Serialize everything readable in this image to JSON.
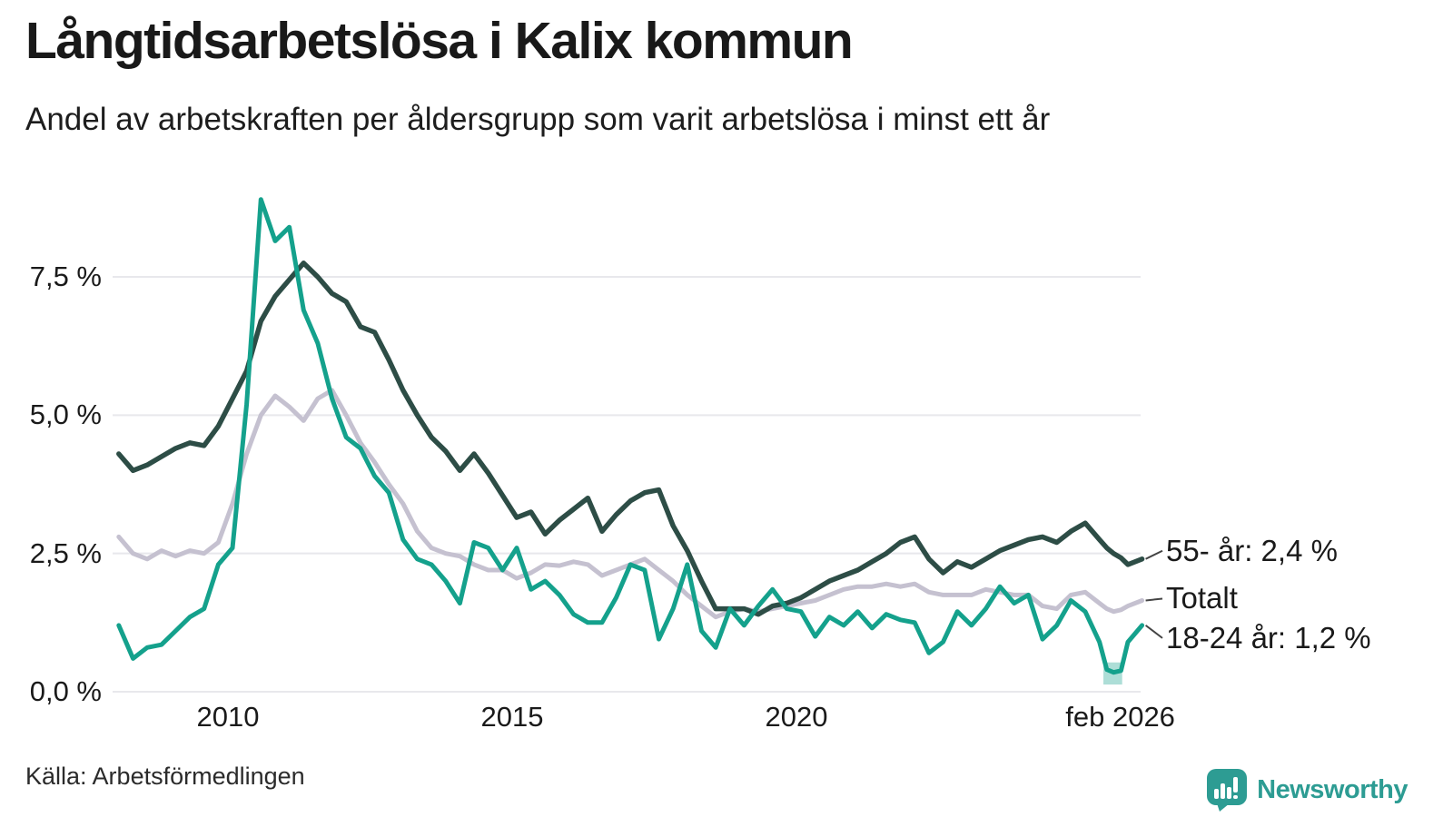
{
  "header": {
    "title": "Långtidsarbetslösa i Kalix kommun",
    "subtitle": "Andel av arbetskraften per åldersgrupp som varit arbetslösa i minst ett år"
  },
  "footer": {
    "source": "Källa: Arbetsförmedlingen",
    "brand": "Newsworthy"
  },
  "colors": {
    "dark": "#2d4d46",
    "total": "#c5c1d0",
    "young": "#14a18c",
    "grid": "#e8e8ec",
    "text": "#1a1a1a",
    "connector": "#444444",
    "brand": "#2d9c93"
  },
  "chart_data": {
    "type": "line",
    "title": "Långtidsarbetslösa i Kalix kommun",
    "subtitle": "Andel av arbetskraften per åldersgrupp som varit arbetslösa i minst ett år",
    "unit": "% av arbetskraften",
    "grid": "horizontal",
    "legend": "end-of-line-labels",
    "xlim": [
      2008.08,
      2026.08
    ],
    "ylim": [
      0,
      9.2
    ],
    "x": [
      2008.08,
      2008.33,
      2008.58,
      2008.83,
      2009.08,
      2009.33,
      2009.58,
      2009.83,
      2010.08,
      2010.33,
      2010.58,
      2010.83,
      2011.08,
      2011.33,
      2011.58,
      2011.83,
      2012.08,
      2012.33,
      2012.58,
      2012.83,
      2013.08,
      2013.33,
      2013.58,
      2013.83,
      2014.08,
      2014.33,
      2014.58,
      2014.83,
      2015.08,
      2015.33,
      2015.58,
      2015.83,
      2016.08,
      2016.33,
      2016.58,
      2016.83,
      2017.08,
      2017.33,
      2017.58,
      2017.83,
      2018.08,
      2018.33,
      2018.58,
      2018.83,
      2019.08,
      2019.33,
      2019.58,
      2019.83,
      2020.08,
      2020.33,
      2020.58,
      2020.83,
      2021.08,
      2021.33,
      2021.58,
      2021.83,
      2022.08,
      2022.33,
      2022.58,
      2022.83,
      2023.08,
      2023.33,
      2023.58,
      2023.83,
      2024.08,
      2024.33,
      2024.58,
      2024.83,
      2025.08,
      2025.33,
      2025.46,
      2025.58,
      2025.71,
      2025.83,
      2026.08
    ],
    "series": [
      {
        "name": "55- år",
        "label": "55- år: 2,4 %",
        "end_value": 2.4,
        "color_key": "dark",
        "label_dy": -9,
        "values": [
          4.3,
          4.0,
          4.1,
          4.25,
          4.4,
          4.5,
          4.45,
          4.8,
          5.3,
          5.8,
          6.7,
          7.15,
          7.45,
          7.75,
          7.5,
          7.2,
          7.05,
          6.6,
          6.5,
          6.0,
          5.45,
          5.0,
          4.6,
          4.35,
          4.0,
          4.3,
          3.95,
          3.55,
          3.15,
          3.25,
          2.85,
          3.1,
          3.3,
          3.5,
          2.9,
          3.2,
          3.45,
          3.6,
          3.65,
          3.0,
          2.55,
          2.0,
          1.5,
          1.5,
          1.5,
          1.4,
          1.55,
          1.6,
          1.7,
          1.85,
          2.0,
          2.1,
          2.2,
          2.35,
          2.5,
          2.7,
          2.8,
          2.4,
          2.15,
          2.35,
          2.25,
          2.4,
          2.55,
          2.65,
          2.75,
          2.8,
          2.7,
          2.9,
          3.05,
          2.75,
          2.6,
          2.5,
          2.42,
          2.3,
          2.4
        ]
      },
      {
        "name": "Totalt",
        "label": "Totalt",
        "end_value": 1.65,
        "color_key": "total",
        "label_dy": -2,
        "values": [
          2.8,
          2.5,
          2.4,
          2.55,
          2.45,
          2.55,
          2.5,
          2.7,
          3.4,
          4.3,
          5.0,
          5.35,
          5.15,
          4.9,
          5.3,
          5.45,
          5.0,
          4.5,
          4.15,
          3.75,
          3.4,
          2.9,
          2.6,
          2.5,
          2.45,
          2.3,
          2.2,
          2.2,
          2.05,
          2.15,
          2.3,
          2.28,
          2.35,
          2.3,
          2.1,
          2.2,
          2.3,
          2.4,
          2.2,
          2.0,
          1.75,
          1.55,
          1.35,
          1.45,
          1.5,
          1.45,
          1.5,
          1.55,
          1.6,
          1.65,
          1.75,
          1.85,
          1.9,
          1.9,
          1.95,
          1.9,
          1.95,
          1.8,
          1.75,
          1.75,
          1.75,
          1.85,
          1.8,
          1.75,
          1.75,
          1.55,
          1.5,
          1.75,
          1.8,
          1.6,
          1.5,
          1.45,
          1.48,
          1.55,
          1.65
        ]
      },
      {
        "name": "18-24 år",
        "label": "18-24 år: 1,2 %",
        "end_value": 1.2,
        "color_key": "young",
        "label_dy": 14,
        "values": [
          1.2,
          0.6,
          0.8,
          0.85,
          1.1,
          1.35,
          1.5,
          2.3,
          2.6,
          5.2,
          8.9,
          8.15,
          8.4,
          6.9,
          6.3,
          5.3,
          4.6,
          4.4,
          3.9,
          3.6,
          2.75,
          2.4,
          2.3,
          2.0,
          1.6,
          2.7,
          2.6,
          2.2,
          2.6,
          1.85,
          2.0,
          1.75,
          1.4,
          1.25,
          1.25,
          1.7,
          2.3,
          2.2,
          0.95,
          1.5,
          2.3,
          1.1,
          0.8,
          1.5,
          1.2,
          1.55,
          1.85,
          1.5,
          1.45,
          1.0,
          1.35,
          1.2,
          1.45,
          1.15,
          1.4,
          1.3,
          1.25,
          0.7,
          0.9,
          1.45,
          1.2,
          1.5,
          1.9,
          1.6,
          1.75,
          0.95,
          1.2,
          1.65,
          1.45,
          0.9,
          0.4,
          0.35,
          0.38,
          0.9,
          1.2
        ]
      }
    ],
    "y_ticks": [
      {
        "value": 0,
        "label": "0,0 %"
      },
      {
        "value": 2.5,
        "label": "2,5 %"
      },
      {
        "value": 5,
        "label": "5,0 %"
      },
      {
        "value": 7.5,
        "label": "7,5 %"
      }
    ],
    "x_ticks": [
      {
        "value": 2010,
        "label": "2010"
      },
      {
        "value": 2015,
        "label": "2015"
      },
      {
        "value": 2020,
        "label": "2020"
      },
      {
        "value": 2026.08,
        "label": "feb 2026",
        "dx": -24
      }
    ],
    "highlight_band": {
      "series": "18-24 år",
      "x0": 2025.4,
      "x1": 2025.73,
      "y_top": 0.53,
      "y_bottom": 0.13,
      "color_key": "young",
      "opacity": 0.35
    }
  }
}
